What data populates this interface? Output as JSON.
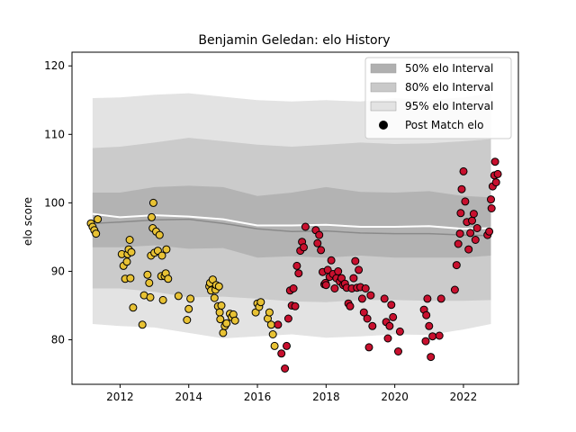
{
  "chart_data": {
    "type": "area",
    "title": "Benjamin Geledan: elo History",
    "xlabel": "",
    "ylabel": "elo score",
    "xlim": [
      2010.6,
      2023.6
    ],
    "ylim": [
      73.5,
      122
    ],
    "x_ticks": [
      2012,
      2014,
      2016,
      2018,
      2020,
      2022
    ],
    "x_tick_labels": [
      "2012",
      "2014",
      "2016",
      "2018",
      "2020",
      "2022"
    ],
    "y_ticks": [
      80,
      90,
      100,
      110,
      120
    ],
    "y_tick_labels": [
      "80",
      "90",
      "100",
      "110",
      "120"
    ],
    "grid": false,
    "legend_position": "top-right",
    "legend": [
      {
        "label": "50% elo Interval",
        "kind": "band",
        "color": "#b0b0b0"
      },
      {
        "label": "80% elo Interval",
        "kind": "band",
        "color": "#c9c9c9"
      },
      {
        "label": "95% elo Interval",
        "kind": "band",
        "color": "#e3e3e3"
      },
      {
        "label": "Post Match elo",
        "kind": "marker",
        "color": "#000000"
      }
    ],
    "colors": {
      "band50": "#b3b3b3",
      "band80": "#cbcbcb",
      "band95": "#e3e3e3",
      "mean_line": "#ffffff",
      "median_line": "#8a8a8a",
      "early_points": "#e8c234",
      "late_points": "#c8102e"
    },
    "bands": {
      "x": [
        2011.2,
        2012.0,
        2013.0,
        2014.0,
        2015.0,
        2016.0,
        2017.0,
        2018.0,
        2019.0,
        2020.0,
        2021.0,
        2022.0,
        2022.8
      ],
      "median": [
        97.0,
        97.2,
        97.5,
        97.6,
        97.0,
        96.2,
        95.8,
        95.9,
        95.6,
        95.5,
        95.5,
        95.3,
        95.2
      ],
      "mean": [
        98.4,
        97.9,
        98.2,
        98.0,
        97.6,
        96.7,
        96.7,
        96.8,
        96.5,
        96.5,
        96.6,
        96.2,
        96.3
      ],
      "band50_lower": [
        93.5,
        93.5,
        93.8,
        93.3,
        93.4,
        92.0,
        92.2,
        92.0,
        92.3,
        92.0,
        92.0,
        92.0,
        92.3
      ],
      "band50_upper": [
        101.5,
        101.5,
        102.3,
        102.5,
        102.3,
        101.0,
        101.5,
        102.3,
        101.6,
        101.5,
        101.7,
        101.0,
        100.8
      ],
      "band80_lower": [
        87.5,
        87.5,
        87.0,
        86.2,
        86.3,
        86.0,
        85.6,
        85.5,
        85.8,
        85.8,
        85.7,
        85.7,
        85.8
      ],
      "band80_upper": [
        108.0,
        108.2,
        108.8,
        109.5,
        109.0,
        108.5,
        108.2,
        108.5,
        108.8,
        108.6,
        108.7,
        109.0,
        109.3
      ],
      "band95_lower": [
        82.3,
        82.0,
        81.8,
        81.0,
        80.2,
        80.5,
        80.8,
        80.3,
        80.5,
        80.8,
        80.7,
        81.5,
        82.3
      ],
      "band95_upper": [
        115.3,
        115.4,
        115.8,
        116.0,
        115.5,
        115.0,
        114.8,
        115.0,
        114.8,
        115.3,
        115.0,
        115.4,
        116.0
      ]
    },
    "series": [
      {
        "name": "Post Match elo",
        "color": "#e8c234",
        "points": [
          [
            2011.15,
            97.0
          ],
          [
            2011.2,
            96.5
          ],
          [
            2011.25,
            96.0
          ],
          [
            2011.3,
            95.5
          ],
          [
            2011.35,
            97.6
          ],
          [
            2012.05,
            92.5
          ],
          [
            2012.1,
            90.8
          ],
          [
            2012.15,
            88.9
          ],
          [
            2012.2,
            91.4
          ],
          [
            2012.22,
            92.5
          ],
          [
            2012.25,
            93.2
          ],
          [
            2012.28,
            94.6
          ],
          [
            2012.3,
            89.0
          ],
          [
            2012.33,
            92.8
          ],
          [
            2012.38,
            84.7
          ],
          [
            2012.65,
            82.2
          ],
          [
            2012.7,
            86.5
          ],
          [
            2012.8,
            89.5
          ],
          [
            2012.85,
            88.3
          ],
          [
            2012.88,
            86.2
          ],
          [
            2012.9,
            92.3
          ],
          [
            2012.92,
            97.9
          ],
          [
            2012.95,
            96.3
          ],
          [
            2012.97,
            100.0
          ],
          [
            2013.0,
            92.7
          ],
          [
            2013.05,
            95.8
          ],
          [
            2013.1,
            93.0
          ],
          [
            2013.15,
            95.3
          ],
          [
            2013.2,
            89.3
          ],
          [
            2013.22,
            92.3
          ],
          [
            2013.25,
            85.8
          ],
          [
            2013.3,
            89.3
          ],
          [
            2013.33,
            89.7
          ],
          [
            2013.35,
            93.2
          ],
          [
            2013.4,
            88.9
          ],
          [
            2013.7,
            86.4
          ],
          [
            2013.95,
            82.9
          ],
          [
            2014.0,
            84.5
          ],
          [
            2014.05,
            86.0
          ],
          [
            2014.6,
            87.8
          ],
          [
            2014.62,
            88.3
          ],
          [
            2014.65,
            87.2
          ],
          [
            2014.7,
            88.8
          ],
          [
            2014.75,
            86.1
          ],
          [
            2014.78,
            87.3
          ],
          [
            2014.8,
            88.0
          ],
          [
            2014.85,
            84.9
          ],
          [
            2014.88,
            87.8
          ],
          [
            2014.9,
            84.0
          ],
          [
            2014.92,
            83.0
          ],
          [
            2014.95,
            85.0
          ],
          [
            2015.0,
            81.0
          ],
          [
            2015.05,
            82.0
          ],
          [
            2015.1,
            82.4
          ],
          [
            2015.2,
            83.8
          ],
          [
            2015.25,
            83.3
          ],
          [
            2015.3,
            83.7
          ],
          [
            2015.35,
            82.8
          ],
          [
            2015.95,
            84.0
          ],
          [
            2016.0,
            85.3
          ],
          [
            2016.05,
            84.8
          ],
          [
            2016.1,
            85.5
          ],
          [
            2016.3,
            83.1
          ],
          [
            2016.35,
            84.0
          ],
          [
            2016.4,
            82.2
          ],
          [
            2016.45,
            80.8
          ],
          [
            2016.5,
            79.1
          ]
        ]
      },
      {
        "name": "Post Match elo",
        "color": "#c8102e",
        "points": [
          [
            2016.6,
            82.2
          ],
          [
            2016.7,
            78.0
          ],
          [
            2016.8,
            75.8
          ],
          [
            2016.85,
            79.1
          ],
          [
            2016.9,
            83.1
          ],
          [
            2016.95,
            87.2
          ],
          [
            2017.0,
            85.0
          ],
          [
            2017.05,
            87.5
          ],
          [
            2017.1,
            84.9
          ],
          [
            2017.15,
            90.8
          ],
          [
            2017.2,
            89.7
          ],
          [
            2017.25,
            93.0
          ],
          [
            2017.3,
            94.3
          ],
          [
            2017.35,
            93.5
          ],
          [
            2017.4,
            96.5
          ],
          [
            2017.7,
            96.0
          ],
          [
            2017.75,
            94.1
          ],
          [
            2017.8,
            95.3
          ],
          [
            2017.85,
            93.1
          ],
          [
            2017.9,
            89.9
          ],
          [
            2017.95,
            88.1
          ],
          [
            2017.98,
            88.3
          ],
          [
            2018.0,
            88.0
          ],
          [
            2018.05,
            90.2
          ],
          [
            2018.1,
            89.2
          ],
          [
            2018.15,
            91.6
          ],
          [
            2018.2,
            89.6
          ],
          [
            2018.25,
            87.5
          ],
          [
            2018.3,
            89.0
          ],
          [
            2018.35,
            90.0
          ],
          [
            2018.4,
            88.5
          ],
          [
            2018.45,
            89.0
          ],
          [
            2018.5,
            88.0
          ],
          [
            2018.55,
            88.2
          ],
          [
            2018.6,
            87.6
          ],
          [
            2018.65,
            85.3
          ],
          [
            2018.7,
            84.9
          ],
          [
            2018.75,
            87.5
          ],
          [
            2018.8,
            89.0
          ],
          [
            2018.85,
            91.5
          ],
          [
            2018.9,
            87.6
          ],
          [
            2018.95,
            90.2
          ],
          [
            2019.0,
            87.7
          ],
          [
            2019.05,
            86.0
          ],
          [
            2019.1,
            84.0
          ],
          [
            2019.15,
            87.5
          ],
          [
            2019.2,
            83.1
          ],
          [
            2019.25,
            78.9
          ],
          [
            2019.3,
            86.5
          ],
          [
            2019.35,
            82.0
          ],
          [
            2019.7,
            86.0
          ],
          [
            2019.75,
            82.6
          ],
          [
            2019.8,
            80.2
          ],
          [
            2019.85,
            82.0
          ],
          [
            2019.9,
            85.1
          ],
          [
            2019.95,
            83.3
          ],
          [
            2020.1,
            78.3
          ],
          [
            2020.15,
            81.2
          ],
          [
            2020.85,
            84.4
          ],
          [
            2020.9,
            79.8
          ],
          [
            2020.92,
            83.6
          ],
          [
            2020.95,
            86.0
          ],
          [
            2021.0,
            82.0
          ],
          [
            2021.05,
            77.5
          ],
          [
            2021.1,
            80.5
          ],
          [
            2021.3,
            80.6
          ],
          [
            2021.35,
            86.0
          ],
          [
            2021.75,
            87.3
          ],
          [
            2021.8,
            90.9
          ],
          [
            2021.85,
            94.0
          ],
          [
            2021.9,
            95.5
          ],
          [
            2021.92,
            98.5
          ],
          [
            2021.95,
            102.0
          ],
          [
            2022.0,
            104.6
          ],
          [
            2022.05,
            100.2
          ],
          [
            2022.1,
            97.2
          ],
          [
            2022.15,
            93.2
          ],
          [
            2022.2,
            95.6
          ],
          [
            2022.25,
            97.4
          ],
          [
            2022.3,
            98.4
          ],
          [
            2022.35,
            94.6
          ],
          [
            2022.4,
            96.3
          ],
          [
            2022.7,
            95.3
          ],
          [
            2022.75,
            95.8
          ],
          [
            2022.8,
            100.5
          ],
          [
            2022.82,
            99.2
          ],
          [
            2022.85,
            102.4
          ],
          [
            2022.9,
            104.0
          ],
          [
            2022.92,
            106.0
          ],
          [
            2022.95,
            103.0
          ],
          [
            2023.0,
            104.2
          ]
        ]
      }
    ]
  }
}
